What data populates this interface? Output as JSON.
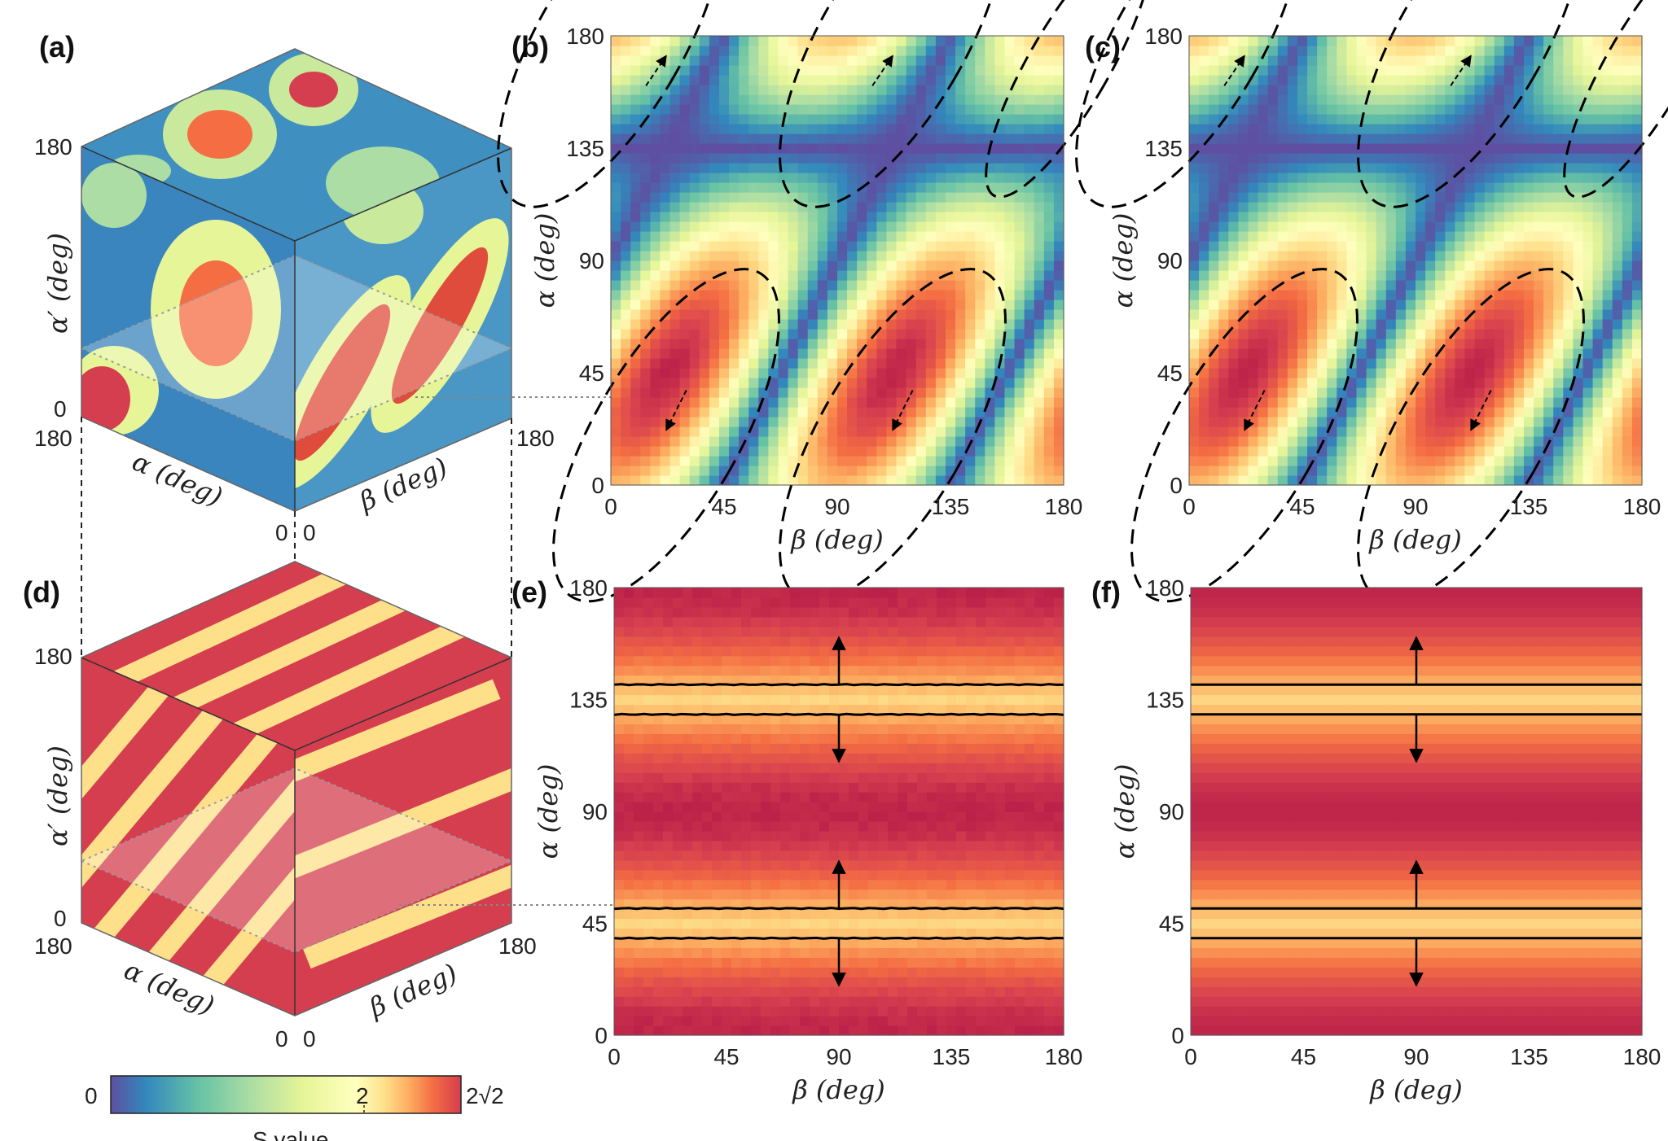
{
  "panel_labels": [
    "(a)",
    "(b)",
    "(c)",
    "(d)",
    "(e)",
    "(f)"
  ],
  "colorbar": {
    "min_label": "0",
    "mid_label": "2",
    "max_label": "2√2",
    "title": "S value",
    "colors": [
      "#5e4fa2",
      "#3288bd",
      "#66c2a5",
      "#abdda4",
      "#e6f598",
      "#ffffbf",
      "#fee08b",
      "#fdae61",
      "#f46d43",
      "#d53e4f",
      "#9e0142"
    ]
  },
  "cubes": {
    "top": {
      "alpha_prime_label": "α′ (deg)",
      "alpha_label": "α (deg)",
      "beta_label": "β (deg)",
      "v180": "180",
      "v0": "0"
    },
    "bottom": {
      "alpha_prime_label": "α′ (deg)",
      "alpha_label": "α (deg)",
      "beta_label": "β (deg)",
      "v180": "180",
      "v0": "0"
    }
  },
  "chart_data": [
    {
      "panel": "(b)",
      "type": "heatmap",
      "title": "",
      "xlabel": "β (deg)",
      "ylabel": "α (deg)",
      "xlim": [
        0,
        180
      ],
      "ylim": [
        0,
        180
      ],
      "xticks": [
        "0",
        "45",
        "90",
        "135",
        "180"
      ],
      "yticks": [
        "0",
        "45",
        "90",
        "135",
        "180"
      ],
      "colormap": "Spectral_r",
      "value_range": [
        0,
        2.828
      ],
      "description_values": "S value map; maxima near (β,α)=(22,22),(112,22),(0,180),(112,180); contour S=2 dashed"
    },
    {
      "panel": "(c)",
      "type": "heatmap",
      "xlabel": "β (deg)",
      "ylabel": "α (deg)",
      "xlim": [
        0,
        180
      ],
      "ylim": [
        0,
        180
      ],
      "xticks": [
        "0",
        "45",
        "90",
        "135",
        "180"
      ],
      "yticks": [
        "0",
        "45",
        "90",
        "135",
        "180"
      ],
      "colormap": "Spectral_r",
      "value_range": [
        0,
        2.828
      ]
    },
    {
      "panel": "(e)",
      "type": "heatmap",
      "xlabel": "β (deg)",
      "ylabel": "α (deg)",
      "xlim": [
        0,
        180
      ],
      "ylim": [
        0,
        180
      ],
      "xticks": [
        "0",
        "45",
        "90",
        "135",
        "180"
      ],
      "yticks": [
        "0",
        "45",
        "90",
        "135",
        "180"
      ],
      "colormap": "Spectral_r",
      "value_range": [
        0,
        2.828
      ],
      "contour_alpha": [
        39,
        51,
        129,
        141
      ]
    },
    {
      "panel": "(f)",
      "type": "heatmap",
      "xlabel": "β (deg)",
      "ylabel": "α (deg)",
      "xlim": [
        0,
        180
      ],
      "ylim": [
        0,
        180
      ],
      "xticks": [
        "0",
        "45",
        "90",
        "135",
        "180"
      ],
      "yticks": [
        "0",
        "45",
        "90",
        "135",
        "180"
      ],
      "colormap": "Spectral_r",
      "value_range": [
        0,
        2.828
      ],
      "contour_alpha": [
        39,
        51,
        129,
        141
      ]
    }
  ]
}
